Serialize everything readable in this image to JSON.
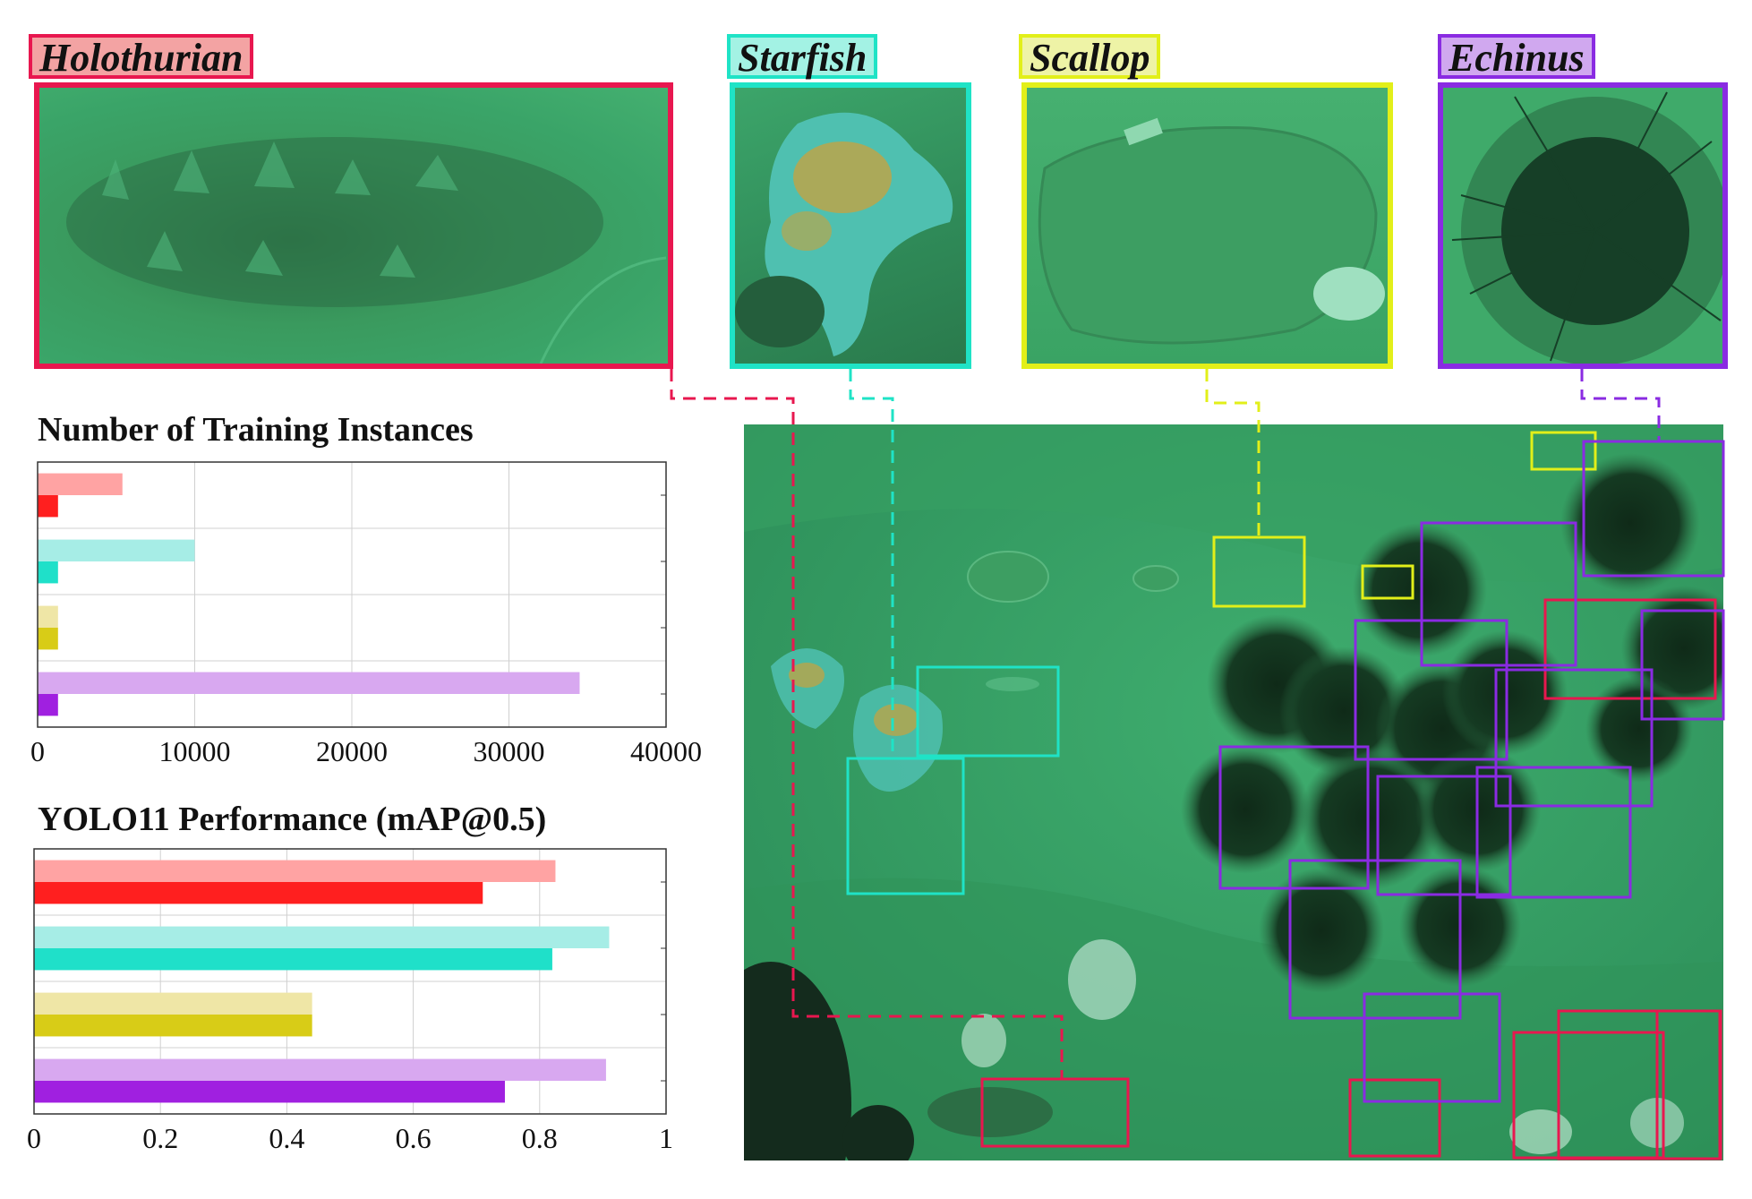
{
  "classes": [
    {
      "name": "Holothurian",
      "color": "#e8174f",
      "label_bg": "#f3a3a3",
      "bar_light": "#ffa3a3",
      "bar_dark": "#ff1f1f"
    },
    {
      "name": "Starfish",
      "color": "#1fe3c6",
      "label_bg": "#a3f2e4",
      "bar_light": "#a6ede6",
      "bar_dark": "#1fe0c9"
    },
    {
      "name": "Scallop",
      "color": "#e2ef19",
      "label_bg": "#eef3a6",
      "bar_light": "#efe6a6",
      "bar_dark": "#d8cc17"
    },
    {
      "name": "Echinus",
      "color": "#8a2be2",
      "label_bg": "#d0a8ef",
      "bar_light": "#d8a8f0",
      "bar_dark": "#a020e0"
    }
  ],
  "chart_data": [
    {
      "type": "bar",
      "orientation": "horizontal",
      "title": "Number of Training Instances",
      "categories": [
        "Holothurian",
        "Starfish",
        "Scallop",
        "Echinus"
      ],
      "series": [
        {
          "values": [
            5400,
            10000,
            1300,
            34500
          ]
        },
        {
          "values": [
            1300,
            1300,
            1300,
            1300
          ]
        }
      ],
      "xlim": [
        0,
        40000
      ],
      "xticks": [
        "0",
        "10000",
        "20000",
        "30000",
        "40000"
      ],
      "grid": true
    },
    {
      "type": "bar",
      "orientation": "horizontal",
      "title": "YOLO11 Performance (mAP@0.5)",
      "categories": [
        "Holothurian",
        "Starfish",
        "Scallop",
        "Echinus"
      ],
      "series": [
        {
          "values": [
            0.825,
            0.91,
            0.44,
            0.905
          ]
        },
        {
          "values": [
            0.71,
            0.82,
            0.44,
            0.745
          ]
        }
      ],
      "xlim": [
        0,
        1
      ],
      "xticks": [
        "0",
        "0.2",
        "0.4",
        "0.6",
        "0.8",
        "1"
      ],
      "grid": true
    }
  ]
}
